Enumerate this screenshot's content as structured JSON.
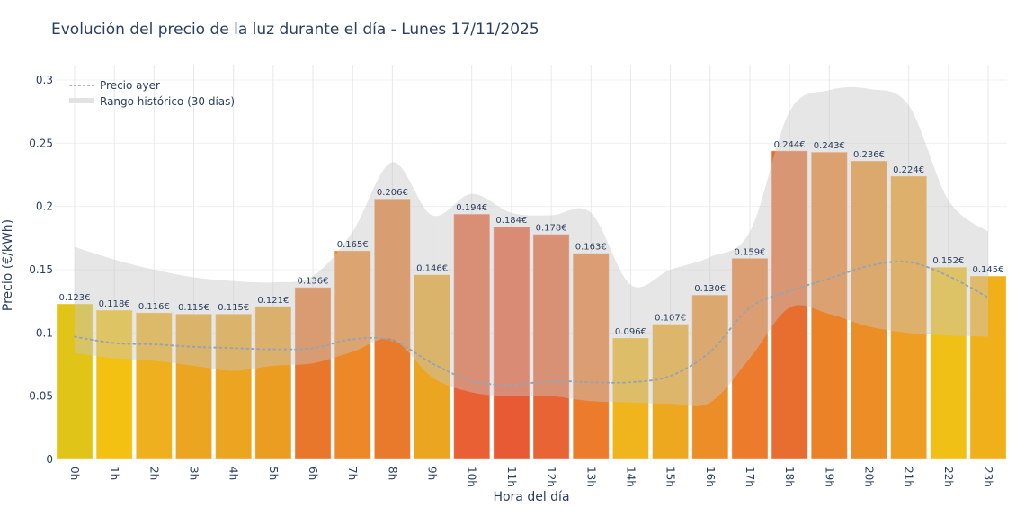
{
  "chart_data": {
    "type": "bar",
    "title": "Evolución del precio de la luz durante el día - Lunes 17/11/2025",
    "xlabel": "Hora del día",
    "ylabel": "Precio (€/kWh)",
    "ylim": [
      0,
      0.31
    ],
    "yticks": [
      0,
      0.05,
      0.1,
      0.15,
      0.2,
      0.25,
      0.3
    ],
    "ytick_labels": [
      "0",
      "0.05",
      "0.1",
      "0.15",
      "0.2",
      "0.25",
      "0.3"
    ],
    "grid": true,
    "legend_placement": "top-left",
    "categories": [
      "0h",
      "1h",
      "2h",
      "3h",
      "4h",
      "5h",
      "6h",
      "7h",
      "8h",
      "9h",
      "10h",
      "11h",
      "12h",
      "13h",
      "14h",
      "15h",
      "16h",
      "17h",
      "18h",
      "19h",
      "20h",
      "21h",
      "22h",
      "23h"
    ],
    "values": [
      0.123,
      0.118,
      0.116,
      0.115,
      0.115,
      0.121,
      0.136,
      0.165,
      0.206,
      0.146,
      0.194,
      0.184,
      0.178,
      0.163,
      0.096,
      0.107,
      0.13,
      0.159,
      0.244,
      0.243,
      0.236,
      0.224,
      0.152,
      0.145
    ],
    "data_labels": [
      "0.123€",
      "0.118€",
      "0.116€",
      "0.115€",
      "0.115€",
      "0.121€",
      "0.136€",
      "0.165€",
      "0.206€",
      "0.146€",
      "0.194€",
      "0.184€",
      "0.178€",
      "0.163€",
      "0.096€",
      "0.107€",
      "0.130€",
      "0.159€",
      "0.244€",
      "0.243€",
      "0.236€",
      "0.224€",
      "0.152€",
      "0.145€"
    ],
    "bar_colors": [
      "#e0c418",
      "#f2c112",
      "#eeb01e",
      "#eca520",
      "#eca520",
      "#eb9d22",
      "#e8772c",
      "#ec8828",
      "#e87a2c",
      "#eca520",
      "#e86034",
      "#e85a34",
      "#e86434",
      "#ec7c2c",
      "#f0b41c",
      "#eea820",
      "#eb8e28",
      "#ec7c2c",
      "#e86e30",
      "#ec8228",
      "#ec8e26",
      "#ee9e22",
      "#f0c016",
      "#f0b01c"
    ],
    "series": [
      {
        "name": "Precio ayer",
        "type": "line",
        "style": "dotted",
        "color": "#9aa4ae",
        "values": [
          0.097,
          0.092,
          0.091,
          0.089,
          0.088,
          0.087,
          0.088,
          0.095,
          0.094,
          0.076,
          0.062,
          0.059,
          0.062,
          0.061,
          0.061,
          0.066,
          0.085,
          0.12,
          0.133,
          0.143,
          0.153,
          0.156,
          0.145,
          0.128
        ]
      },
      {
        "name": "Rango histórico (30 días)",
        "type": "band",
        "color": "#c8c8c8",
        "upper": [
          0.168,
          0.158,
          0.15,
          0.144,
          0.141,
          0.14,
          0.145,
          0.18,
          0.235,
          0.193,
          0.21,
          0.195,
          0.193,
          0.195,
          0.138,
          0.15,
          0.16,
          0.18,
          0.275,
          0.292,
          0.293,
          0.28,
          0.205,
          0.18
        ],
        "lower": [
          0.084,
          0.08,
          0.078,
          0.074,
          0.07,
          0.074,
          0.076,
          0.085,
          0.095,
          0.065,
          0.053,
          0.05,
          0.05,
          0.046,
          0.045,
          0.044,
          0.045,
          0.08,
          0.12,
          0.115,
          0.105,
          0.1,
          0.098,
          0.097
        ]
      }
    ]
  }
}
